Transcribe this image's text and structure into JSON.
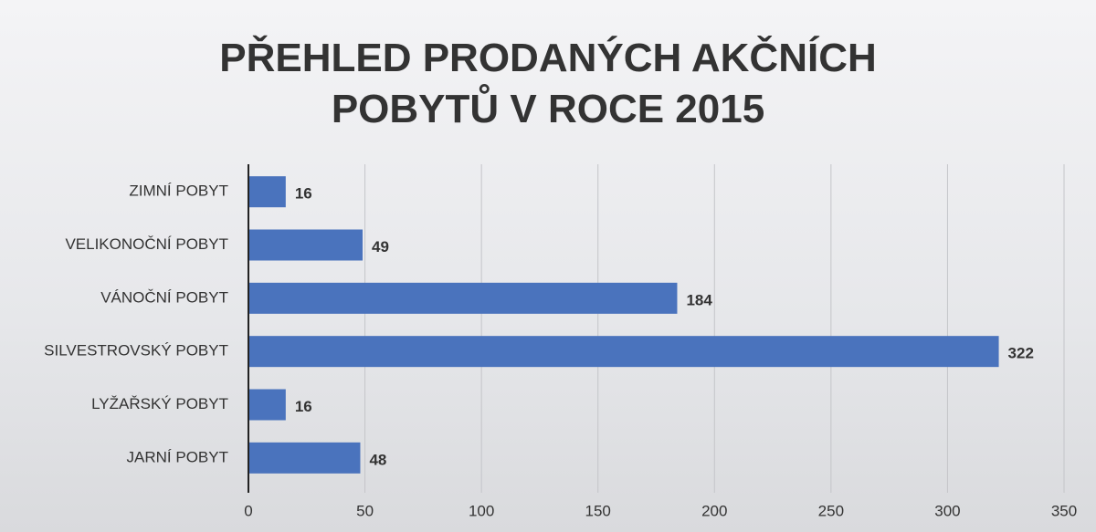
{
  "chart_data": {
    "type": "bar",
    "orientation": "horizontal",
    "title": "PŘEHLED PRODANÝCH AKČNÍCH POBYTŮ V ROCE 2015",
    "categories": [
      "ZIMNÍ POBYT",
      "VELIKONOČNÍ POBYT",
      "VÁNOČNÍ POBYT",
      "SILVESTROVSKÝ POBYT",
      "LYŽAŘSKÝ POBYT",
      "JARNÍ POBYT"
    ],
    "values": [
      16,
      49,
      184,
      322,
      16,
      48
    ],
    "color": "#4a73bd",
    "xlim": [
      0,
      350
    ],
    "xticks": [
      0,
      50,
      100,
      150,
      200,
      250,
      300,
      350
    ],
    "grid": true
  }
}
